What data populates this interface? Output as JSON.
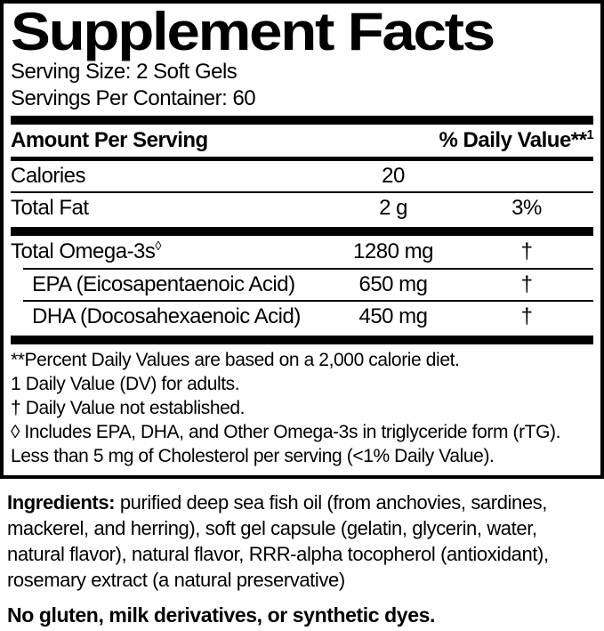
{
  "panel": {
    "title": "Supplement Facts",
    "serving_size": "Serving Size: 2 Soft Gels",
    "servings_per_container": "Servings Per Container: 60",
    "columns": {
      "amount_header": "Amount Per Serving",
      "dv_header": "% Daily Value**",
      "dv_header_sup": "1"
    },
    "rows": [
      {
        "name": "Calories",
        "amount": "20",
        "dv": ""
      },
      {
        "name": "Total Fat",
        "amount": "2 g",
        "dv": "3%"
      },
      {
        "name": "Total Omega-3s",
        "name_sup": "◊",
        "amount": "1280 mg",
        "dv": "†"
      },
      {
        "name": "EPA (Eicosapentaenoic Acid)",
        "amount": "650 mg",
        "dv": "†"
      },
      {
        "name": "DHA (Docosahexaenoic Acid)",
        "amount": "450 mg",
        "dv": "†"
      }
    ],
    "footnotes": [
      "**Percent Daily Values are based on a 2,000 calorie diet.",
      "1 Daily Value (DV) for adults.",
      "† Daily Value not established.",
      "◊ Includes EPA, DHA, and Other Omega-3s in triglyceride form (rTG).",
      "Less than 5 mg of Cholesterol per serving (<1% Daily Value)."
    ]
  },
  "ingredients": {
    "label": "Ingredients:",
    "text": "purified deep sea fish oil (from anchovies, sardines, mackerel, and herring), soft gel capsule (gelatin, glycerin, water, natural flavor), natural flavor, RRR-alpha tocopherol (antioxidant), rosemary extract (a natural preservative)"
  },
  "allergen_statement": "No gluten, milk derivatives, or synthetic dyes.",
  "colors": {
    "text": "#000000",
    "background": "#ffffff"
  }
}
